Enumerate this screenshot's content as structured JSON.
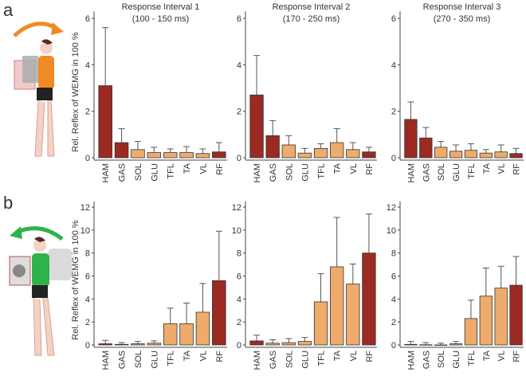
{
  "panel_labels": [
    "a",
    "b"
  ],
  "colors": {
    "dark": "#9b2a22",
    "light": "#eeab6b",
    "arrow_a": "#f08a24",
    "arrow_b": "#2db34a"
  },
  "chart_data": [
    {
      "type": "bar",
      "row": "a",
      "title": "Response Interval 1",
      "subtitle": "(100 - 150 ms)",
      "ylabel": "Rel. Reflex of WEMG in 100 %",
      "ylim": [
        0,
        6.3
      ],
      "yticks": [
        0,
        2,
        4,
        6
      ],
      "categories": [
        "HAM",
        "GAS",
        "SOL",
        "GLU",
        "TFL",
        "TA",
        "VL",
        "RF"
      ],
      "values": [
        3.1,
        0.65,
        0.35,
        0.22,
        0.22,
        0.22,
        0.18,
        0.25
      ],
      "error_upper": [
        5.6,
        1.25,
        0.7,
        0.45,
        0.38,
        0.48,
        0.38,
        0.65
      ],
      "dark": [
        true,
        true,
        false,
        false,
        false,
        false,
        false,
        true
      ]
    },
    {
      "type": "bar",
      "row": "a",
      "title": "Response Interval 2",
      "subtitle": "(170 - 250 ms)",
      "ylabel": "",
      "ylim": [
        0,
        6.3
      ],
      "yticks": [
        0,
        2,
        4,
        6
      ],
      "categories": [
        "HAM",
        "GAS",
        "SOL",
        "GLU",
        "TFL",
        "TA",
        "VL",
        "RF"
      ],
      "values": [
        2.7,
        0.95,
        0.55,
        0.2,
        0.4,
        0.65,
        0.35,
        0.25
      ],
      "error_upper": [
        4.4,
        1.6,
        0.95,
        0.4,
        0.6,
        1.25,
        0.65,
        0.45
      ],
      "dark": [
        true,
        true,
        false,
        false,
        false,
        false,
        false,
        true
      ]
    },
    {
      "type": "bar",
      "row": "a",
      "title": "Response Interval 3",
      "subtitle": "(270 - 350 ms)",
      "ylabel": "",
      "ylim": [
        0,
        6.3
      ],
      "yticks": [
        0,
        2,
        4,
        6
      ],
      "categories": [
        "HAM",
        "GAS",
        "SOL",
        "GLU",
        "TFL",
        "TA",
        "VL",
        "RF"
      ],
      "values": [
        1.65,
        0.85,
        0.45,
        0.28,
        0.32,
        0.2,
        0.25,
        0.18
      ],
      "error_upper": [
        2.4,
        1.3,
        0.7,
        0.55,
        0.6,
        0.35,
        0.55,
        0.4
      ],
      "dark": [
        true,
        true,
        false,
        false,
        false,
        false,
        false,
        true
      ]
    },
    {
      "type": "bar",
      "row": "b",
      "title": "",
      "subtitle": "",
      "ylabel": "Rel. Reflex of WEMG in 100 %",
      "ylim": [
        0,
        12.5
      ],
      "yticks": [
        0,
        2,
        4,
        6,
        8,
        10,
        12
      ],
      "categories": [
        "HAM",
        "GAS",
        "SOL",
        "GLU",
        "TFL",
        "TA",
        "VL",
        "RF"
      ],
      "values": [
        0.1,
        0.05,
        0.1,
        0.15,
        1.85,
        1.85,
        2.85,
        5.6
      ],
      "error_upper": [
        0.4,
        0.2,
        0.3,
        0.35,
        3.2,
        3.65,
        5.35,
        9.9
      ],
      "dark": [
        true,
        false,
        false,
        false,
        false,
        false,
        false,
        true
      ]
    },
    {
      "type": "bar",
      "row": "b",
      "title": "",
      "subtitle": "",
      "ylabel": "",
      "ylim": [
        0,
        12.5
      ],
      "yticks": [
        0,
        2,
        4,
        6,
        8,
        10,
        12
      ],
      "categories": [
        "HAM",
        "GAS",
        "SOL",
        "GLU",
        "TFL",
        "TA",
        "VL",
        "RF"
      ],
      "values": [
        0.35,
        0.15,
        0.2,
        0.3,
        3.75,
        6.8,
        5.3,
        8.0
      ],
      "error_upper": [
        0.85,
        0.45,
        0.55,
        0.65,
        6.2,
        11.1,
        7.05,
        11.4
      ],
      "dark": [
        true,
        false,
        false,
        false,
        false,
        false,
        false,
        true
      ]
    },
    {
      "type": "bar",
      "row": "b",
      "title": "",
      "subtitle": "",
      "ylabel": "",
      "ylim": [
        0,
        12.5
      ],
      "yticks": [
        0,
        2,
        4,
        6,
        8,
        10,
        12
      ],
      "categories": [
        "HAM",
        "GAS",
        "SOL",
        "GLU",
        "TFL",
        "TA",
        "VL",
        "RF"
      ],
      "values": [
        0.05,
        0.02,
        0.0,
        0.1,
        2.3,
        4.25,
        4.95,
        5.2
      ],
      "error_upper": [
        0.3,
        0.2,
        0.15,
        0.3,
        3.9,
        6.7,
        6.85,
        7.7
      ],
      "dark": [
        true,
        false,
        false,
        false,
        false,
        false,
        false,
        true
      ]
    }
  ]
}
